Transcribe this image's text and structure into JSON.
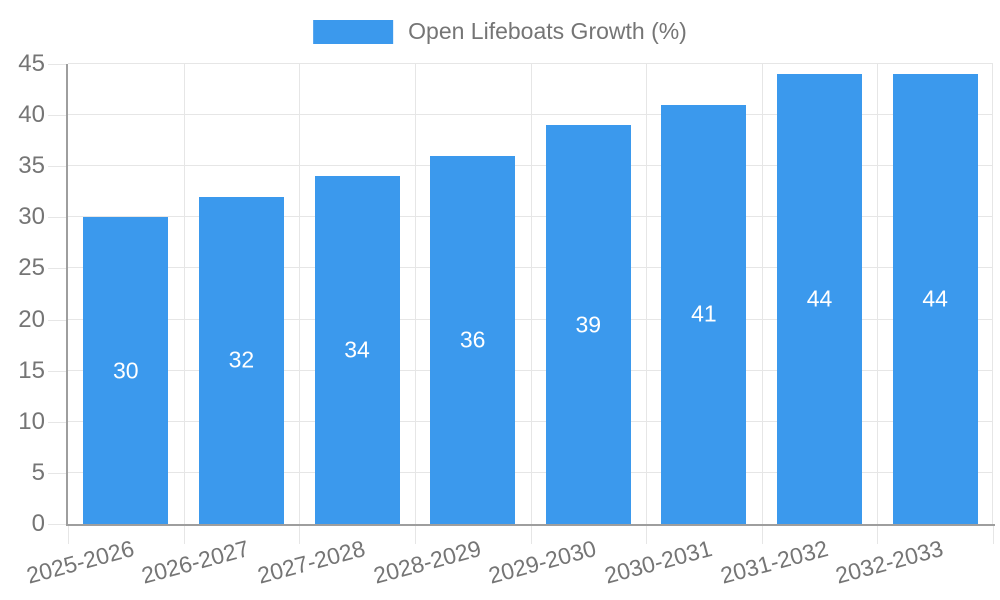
{
  "legend": {
    "label": "Open Lifeboats Growth (%)"
  },
  "chart_data": {
    "type": "bar",
    "title": "Open Lifeboats Growth (%)",
    "categories": [
      "2025-2026",
      "2026-2027",
      "2027-2028",
      "2028-2029",
      "2029-2030",
      "2030-2031",
      "2031-2032",
      "2032-2033"
    ],
    "values": [
      30,
      32,
      34,
      36,
      39,
      41,
      44,
      44
    ],
    "xlabel": "",
    "ylabel": "",
    "ylim": [
      0,
      45
    ],
    "yticks": [
      0,
      5,
      10,
      15,
      20,
      25,
      30,
      35,
      40,
      45
    ],
    "grid": true,
    "legend_position": "top-center",
    "value_labels": "inside-center",
    "x_label_rotation_deg": -15,
    "colors": {
      "bar": "#3b99ed",
      "value_label": "#ffffff",
      "axis_text": "#757575",
      "grid": "#e6e6e6",
      "axis_line": "#9e9e9e",
      "background": "#ffffff"
    }
  }
}
